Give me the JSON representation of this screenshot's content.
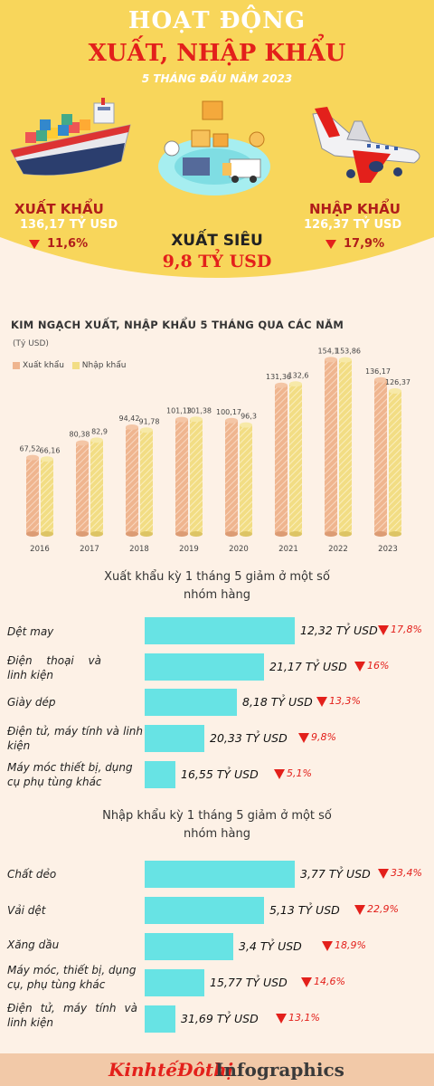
{
  "header": {
    "title_line1": "HOẠT ĐỘNG",
    "title_line2": "XUẤT, NHẬP KHẨU",
    "subtitle": "5 THÁNG ĐẦU NĂM 2023"
  },
  "kpis": {
    "export": {
      "label": "XUẤT KHẨU",
      "value": "136,17 TỶ USD",
      "change": "11,6%"
    },
    "import": {
      "label": "NHẬP KHẨU",
      "value": "126,37 TỶ USD",
      "change": "17,9%"
    },
    "surplus": {
      "label": "XUẤT SIÊU",
      "value": "9,8 TỶ USD"
    }
  },
  "chart_data": [
    {
      "type": "bar",
      "title": "KIM NGẠCH XUẤT, NHẬP KHẨU 5 THÁNG QUA CÁC NĂM",
      "unit": "(Tỷ USD)",
      "categories": [
        "2016",
        "2017",
        "2018",
        "2019",
        "2020",
        "2021",
        "2022",
        "2023"
      ],
      "series": [
        {
          "name": "Xuất khẩu",
          "values": [
            67.52,
            80.38,
            94.42,
            101.13,
            100.17,
            131.36,
            154.1,
            136.17
          ],
          "labels": [
            "67,52",
            "80,38",
            "94,42",
            "101,13",
            "100,17",
            "131,36",
            "154,1",
            "136,17"
          ]
        },
        {
          "name": "Nhập khẩu",
          "values": [
            66.16,
            82.9,
            91.78,
            101.38,
            96.3,
            132.6,
            153.86,
            126.37
          ],
          "labels": [
            "66,16",
            "82,9",
            "91,78",
            "101,38",
            "96,3",
            "132,6",
            "153,86",
            "126,37"
          ]
        }
      ],
      "ylim": [
        0,
        160
      ],
      "legend": "top-left",
      "grid": false
    },
    {
      "type": "bar",
      "orientation": "horizontal",
      "title": "Xuất khẩu kỳ 1 tháng 5 giảm ở một số nhóm hàng",
      "categories": [
        "Dệt may",
        "Điện thoại và linh kiện",
        "Giày dép",
        "Điện tử, máy tính và linh kiện",
        "Máy móc thiết bị, dụng cụ phụ tùng khác"
      ],
      "values": [
        12.32,
        21.17,
        8.18,
        20.33,
        16.55
      ],
      "value_labels": [
        "12,32 TỶ USD",
        "21,17 TỶ USD",
        "8,18 TỶ USD",
        "20,33 TỶ USD",
        "16,55 TỶ USD"
      ],
      "changes": [
        "17,8%",
        "16%",
        "13,3%",
        "9,8%",
        "5,1%"
      ],
      "change_values": [
        -17.8,
        -16,
        -13.3,
        -9.8,
        -5.1
      ]
    },
    {
      "type": "bar",
      "orientation": "horizontal",
      "title": "Nhập khẩu kỳ 1 tháng 5 giảm ở một số nhóm hàng",
      "categories": [
        "Chất dẻo",
        "Vải dệt",
        "Xăng dầu",
        "Máy móc, thiết bị, dụng cụ, phụ tùng khác",
        "Điện tử, máy tính và linh kiện"
      ],
      "values": [
        3.77,
        5.13,
        3.4,
        15.77,
        31.69
      ],
      "value_labels": [
        "3,77 TỶ USD",
        "5,13 TỶ USD",
        "3,4 TỶ USD",
        "15,77 TỶ USD",
        "31,69 TỶ USD"
      ],
      "changes": [
        "33,4%",
        "22,9%",
        "18,9%",
        "14,6%",
        "13,1%"
      ],
      "change_values": [
        -33.4,
        -22.9,
        -18.9,
        -14.6,
        -13.1
      ]
    }
  ],
  "footer": {
    "brand": "KinhtếĐôthị",
    "label": "Infographics"
  },
  "colors": {
    "header": "#f8d65b",
    "accent_red": "#e3201b",
    "export_bar": "#efb58f",
    "import_bar": "#f2dd84",
    "hbar": "#67e3e4"
  }
}
